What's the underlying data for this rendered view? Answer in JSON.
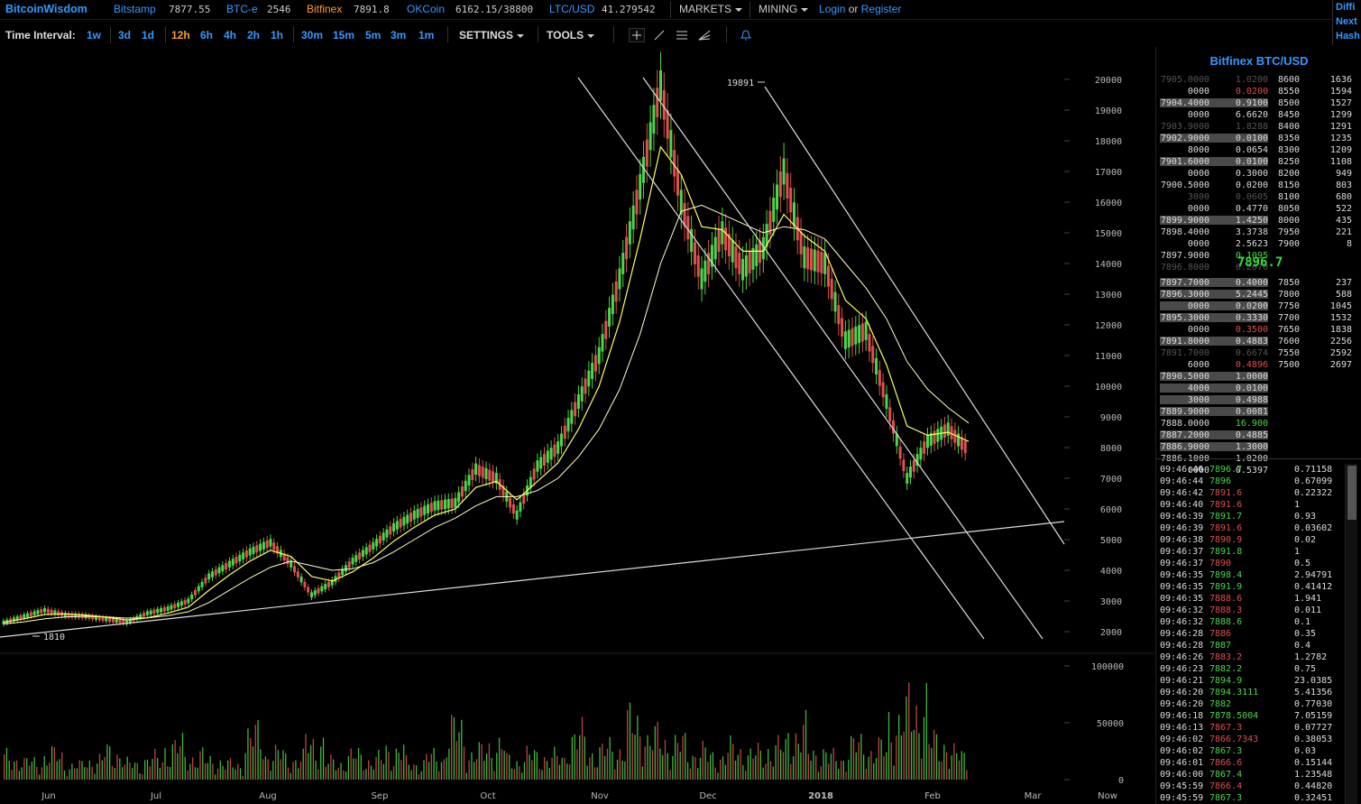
{
  "topbar": {
    "brand": "BitcoinWisdom",
    "exchanges": [
      {
        "name": "Bitstamp",
        "price": "7877.55",
        "active": false
      },
      {
        "name": "BTC-e",
        "price": "2546",
        "active": false
      },
      {
        "name": "Bitfinex",
        "price": "7891.8",
        "active": true
      },
      {
        "name": "OKCoin",
        "price": "6162.15/38800",
        "active": false
      },
      {
        "name": "LTC/USD",
        "price": "41.279542",
        "active": false
      }
    ],
    "markets_label": "MARKETS",
    "mining_label": "MINING",
    "login_label": "Login",
    "or_label": "or",
    "register_label": "Register",
    "right_info": [
      "Diffi",
      "Next",
      "Hash"
    ]
  },
  "toolbar": {
    "time_interval_label": "Time Interval:",
    "intervals": [
      {
        "label": "1w",
        "active": false
      },
      {
        "label": "3d",
        "active": false
      },
      {
        "label": "1d",
        "active": false
      },
      {
        "label": "12h",
        "active": true
      },
      {
        "label": "6h",
        "active": false
      },
      {
        "label": "4h",
        "active": false
      },
      {
        "label": "2h",
        "active": false
      },
      {
        "label": "1h",
        "active": false
      },
      {
        "label": "30m",
        "active": false
      },
      {
        "label": "15m",
        "active": false
      },
      {
        "label": "5m",
        "active": false
      },
      {
        "label": "3m",
        "active": false
      },
      {
        "label": "1m",
        "active": false
      }
    ],
    "settings_label": "SETTINGS",
    "tools_label": "TOOLS",
    "tool_icons": [
      "crosshair-icon",
      "line-icon",
      "parallel-lines-icon",
      "fib-fan-icon",
      "alert-bell-icon"
    ]
  },
  "chart_data": {
    "type": "candlestick",
    "price_axis": [
      "20000",
      "19000",
      "18000",
      "17000",
      "16000",
      "15000",
      "14000",
      "13000",
      "12000",
      "11000",
      "10000",
      "9000",
      "8000",
      "7000",
      "6000",
      "5000",
      "4000",
      "3000",
      "2000"
    ],
    "volume_axis": [
      "100000",
      "50000",
      "0"
    ],
    "x_labels": [
      "Jun",
      "Jul",
      "Aug",
      "Sep",
      "Oct",
      "Nov",
      "Dec",
      "2018",
      "Feb",
      "Mar",
      "Now"
    ],
    "high_marker": "19891",
    "low_marker": "1810",
    "ylim": [
      1500,
      20500
    ],
    "series": [
      {
        "name": "price",
        "values": [
          2300,
          2500,
          2700,
          2550,
          2500,
          2400,
          2300,
          2600,
          2750,
          3000,
          3800,
          4200,
          4600,
          4900,
          4200,
          3200,
          3600,
          4300,
          4800,
          5400,
          5800,
          6100,
          6200,
          7300,
          7000,
          5800,
          7400,
          8000,
          9500,
          11000,
          13500,
          16500,
          19800,
          16000,
          13500,
          15000,
          13800,
          14500,
          17000,
          14200,
          14000,
          11500,
          11800,
          9500,
          7000,
          8200,
          8600,
          7900
        ]
      }
    ],
    "ma_fast": [
      2300,
      2420,
      2560,
      2580,
      2540,
      2470,
      2380,
      2450,
      2600,
      2800,
      3350,
      3850,
      4300,
      4650,
      4450,
      3800,
      3650,
      3950,
      4400,
      4950,
      5400,
      5800,
      6000,
      6700,
      6900,
      6300,
      6900,
      7500,
      8600,
      10000,
      12100,
      14800,
      17800,
      16900,
      15200,
      15100,
      14400,
      14400,
      15600,
      14900,
      14400,
      12800,
      12200,
      10700,
      8700,
      8400,
      8500,
      8200
    ],
    "ma_slow": [
      2250,
      2320,
      2420,
      2480,
      2500,
      2480,
      2440,
      2450,
      2520,
      2650,
      2950,
      3350,
      3750,
      4100,
      4300,
      4150,
      4000,
      4050,
      4250,
      4600,
      5000,
      5400,
      5700,
      6100,
      6400,
      6400,
      6600,
      7000,
      7700,
      8600,
      9900,
      11700,
      14000,
      15700,
      15900,
      15600,
      15300,
      15000,
      15200,
      15100,
      14800,
      14000,
      13200,
      12200,
      10800,
      9900,
      9300,
      8800
    ],
    "volume": [
      28,
      22,
      31,
      18,
      25,
      35,
      20,
      26,
      42,
      30,
      24,
      19,
      55,
      33,
      27,
      48,
      22,
      30,
      26,
      38,
      21,
      29,
      62,
      34,
      44,
      25,
      31,
      28,
      54,
      36,
      40,
      70,
      52,
      45,
      35,
      30,
      38,
      33,
      41,
      60,
      35,
      28,
      44,
      39,
      75,
      95,
      48,
      32
    ]
  },
  "orderbook": {
    "title": "Bitfinex BTC/USD",
    "asks": [
      {
        "price": "7905.0000",
        "amount": "1.0200",
        "dim": true
      },
      {
        "price": "0000",
        "amount": "0.0200",
        "red": true
      },
      {
        "price": "7904.4000",
        "amount": "0.9100",
        "bar": 40
      },
      {
        "price": "0000",
        "amount": "6.6620"
      },
      {
        "price": "7903.9000",
        "amount": "1.8288",
        "dim": true
      },
      {
        "price": "7902.9000",
        "amount": "0.0100",
        "bar": 40
      },
      {
        "price": "8000",
        "amount": "0.0654"
      },
      {
        "price": "7901.6000",
        "amount": "0.0100",
        "bar": 40
      },
      {
        "price": "0000",
        "amount": "0.3000"
      },
      {
        "price": "7900.5000",
        "amount": "0.0200"
      },
      {
        "price": "3000",
        "amount": "0.0605",
        "dim": true
      },
      {
        "price": "0000",
        "amount": "0.4770"
      },
      {
        "price": "7899.9000",
        "amount": "1.4250",
        "bar": 40
      },
      {
        "price": "7898.4000",
        "amount": "3.3738"
      },
      {
        "price": "0000",
        "amount": "2.5623"
      },
      {
        "price": "7897.9000",
        "amount": "0.1095",
        "green": true
      },
      {
        "price": "7896.8000",
        "amount": "0.2070",
        "dim": true
      }
    ],
    "depth_asks": [
      {
        "price": "8600",
        "size": "1636"
      },
      {
        "price": "8550",
        "size": "1594"
      },
      {
        "price": "8500",
        "size": "1527"
      },
      {
        "price": "8450",
        "size": "1299"
      },
      {
        "price": "8400",
        "size": "1291"
      },
      {
        "price": "8350",
        "size": "1235"
      },
      {
        "price": "8300",
        "size": "1209"
      },
      {
        "price": "8250",
        "size": "1108"
      },
      {
        "price": "8200",
        "size": "949"
      },
      {
        "price": "8150",
        "size": "803"
      },
      {
        "price": "8100",
        "size": "680"
      },
      {
        "price": "8050",
        "size": "522"
      },
      {
        "price": "8000",
        "size": "435"
      },
      {
        "price": "7950",
        "size": "221"
      },
      {
        "price": "7900",
        "size": "8"
      }
    ],
    "last_price": "7896.7",
    "bids": [
      {
        "price": "7897.7000",
        "amount": "0.4000",
        "bar": 40
      },
      {
        "price": "7896.3000",
        "amount": "5.2445",
        "bar": 40
      },
      {
        "price": "0000",
        "amount": "0.0200",
        "bar": 40
      },
      {
        "price": "7895.3000",
        "amount": "0.3330",
        "bar": 40
      },
      {
        "price": "0000",
        "amount": "0.3500",
        "red": true
      },
      {
        "price": "7891.8000",
        "amount": "0.4883",
        "bar": 40
      },
      {
        "price": "7891.7000",
        "amount": "0.6674",
        "dim": true
      },
      {
        "price": "6000",
        "amount": "0.4896",
        "red": true
      },
      {
        "price": "7890.5000",
        "amount": "1.0000",
        "bar": 40
      },
      {
        "price": "4000",
        "amount": "0.0100",
        "bar": 40
      },
      {
        "price": "3000",
        "amount": "0.4988",
        "bar": 40
      },
      {
        "price": "7889.9000",
        "amount": "0.0081",
        "bar": 40
      },
      {
        "price": "7888.0000",
        "amount": "16.900",
        "green": true
      },
      {
        "price": "7887.2000",
        "amount": "0.4885",
        "bar": 40
      },
      {
        "price": "7886.9000",
        "amount": "1.3000",
        "bar": 40
      },
      {
        "price": "7886.1000",
        "amount": "1.0200"
      },
      {
        "price": "0000",
        "amount": "0.5397"
      }
    ],
    "depth_bids": [
      {
        "price": "7850",
        "size": "237"
      },
      {
        "price": "7800",
        "size": "588"
      },
      {
        "price": "7750",
        "size": "1045"
      },
      {
        "price": "7700",
        "size": "1532"
      },
      {
        "price": "7650",
        "size": "1838"
      },
      {
        "price": "7600",
        "size": "2256"
      },
      {
        "price": "7550",
        "size": "2592"
      },
      {
        "price": "7500",
        "size": "2697"
      }
    ]
  },
  "trades": [
    {
      "time": "09:46:46",
      "price": "7896.7",
      "amount": "0.71158",
      "side": "buy"
    },
    {
      "time": "09:46:44",
      "price": "7896",
      "amount": "0.67099",
      "side": "buy"
    },
    {
      "time": "09:46:42",
      "price": "7891.6",
      "amount": "0.22322",
      "side": "sell"
    },
    {
      "time": "09:46:40",
      "price": "7891.6",
      "amount": "1",
      "side": "sell"
    },
    {
      "time": "09:46:39",
      "price": "7891.7",
      "amount": "0.93",
      "side": "buy"
    },
    {
      "time": "09:46:39",
      "price": "7891.6",
      "amount": "0.03602",
      "side": "sell"
    },
    {
      "time": "09:46:38",
      "price": "7890.9",
      "amount": "0.02",
      "side": "sell"
    },
    {
      "time": "09:46:37",
      "price": "7891.8",
      "amount": "1",
      "side": "buy"
    },
    {
      "time": "09:46:37",
      "price": "7890",
      "amount": "0.5",
      "side": "sell"
    },
    {
      "time": "09:46:35",
      "price": "7898.4",
      "amount": "2.94791",
      "side": "buy"
    },
    {
      "time": "09:46:35",
      "price": "7891.9",
      "amount": "0.41412",
      "side": "buy"
    },
    {
      "time": "09:46:35",
      "price": "7888.6",
      "amount": "1.941",
      "side": "sell"
    },
    {
      "time": "09:46:32",
      "price": "7888.3",
      "amount": "0.011",
      "side": "sell"
    },
    {
      "time": "09:46:32",
      "price": "7888.6",
      "amount": "0.1",
      "side": "buy"
    },
    {
      "time": "09:46:28",
      "price": "7886",
      "amount": "0.35",
      "side": "sell"
    },
    {
      "time": "09:46:28",
      "price": "7887",
      "amount": "0.4",
      "side": "buy"
    },
    {
      "time": "09:46:26",
      "price": "7883.2",
      "amount": "1.2782",
      "side": "sell"
    },
    {
      "time": "09:46:23",
      "price": "7882.2",
      "amount": "0.75",
      "side": "buy"
    },
    {
      "time": "09:46:21",
      "price": "7894.9",
      "amount": "23.0385",
      "side": "buy"
    },
    {
      "time": "09:46:20",
      "price": "7894.3111",
      "amount": "5.41356",
      "side": "buy"
    },
    {
      "time": "09:46:20",
      "price": "7882",
      "amount": "0.77030",
      "side": "buy"
    },
    {
      "time": "09:46:18",
      "price": "7878.5004",
      "amount": "7.05159",
      "side": "buy"
    },
    {
      "time": "09:46:13",
      "price": "7867.3",
      "amount": "0.07727",
      "side": "sell"
    },
    {
      "time": "09:46:02",
      "price": "7866.7343",
      "amount": "0.38053",
      "side": "sell"
    },
    {
      "time": "09:46:02",
      "price": "7867.3",
      "amount": "0.03",
      "side": "buy"
    },
    {
      "time": "09:46:01",
      "price": "7866.6",
      "amount": "0.15144",
      "side": "sell"
    },
    {
      "time": "09:46:00",
      "price": "7867.4",
      "amount": "1.23548",
      "side": "buy"
    },
    {
      "time": "09:45:59",
      "price": "7866.4",
      "amount": "0.44820",
      "side": "sell"
    },
    {
      "time": "09:45:59",
      "price": "7867.3",
      "amount": "0.32451",
      "side": "buy"
    }
  ],
  "colors": {
    "up": "#4cd64c",
    "down": "#e05050",
    "accent": "#3399ff",
    "active": "#ff9933",
    "ma_fast": "#ffff66",
    "ma_slow": "#ffffcc"
  }
}
